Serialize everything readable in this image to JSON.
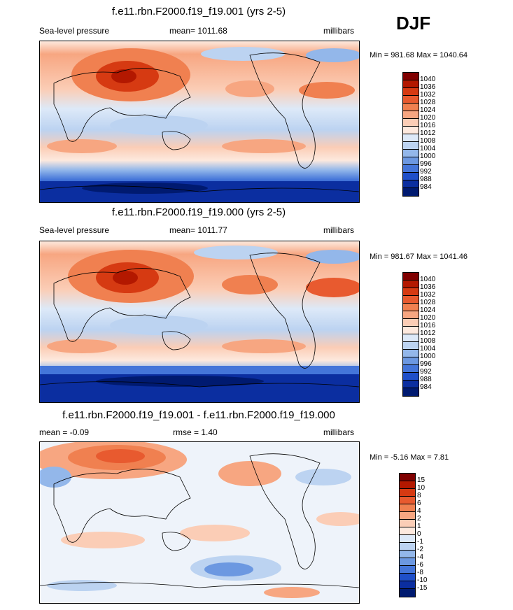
{
  "season": "DJF",
  "panels": [
    {
      "title": "f.e11.rbn.F2000.f19_f19.001 (yrs 2-5)",
      "left_label": "Sea-level pressure",
      "center_label": "mean= 1011.68",
      "right_label": "millibars",
      "minmax": "Min = 981.68 Max = 1040.64",
      "colorbar": {
        "labels": [
          "1040",
          "1036",
          "1032",
          "1028",
          "1024",
          "1020",
          "1016",
          "1012",
          "1008",
          "1004",
          "1000",
          "996",
          "992",
          "988",
          "984"
        ],
        "colors": [
          "#800000",
          "#b31800",
          "#d63a12",
          "#e85a2f",
          "#f08050",
          "#f7a681",
          "#fbcdb6",
          "#fde9de",
          "#dde9f8",
          "#bcd3f1",
          "#93b7ea",
          "#6c98e1",
          "#4475d9",
          "#1f4fc9",
          "#0b2ea0",
          "#001a70"
        ]
      }
    },
    {
      "title": "f.e11.rbn.F2000.f19_f19.000 (yrs 2-5)",
      "left_label": "Sea-level pressure",
      "center_label": "mean= 1011.77",
      "right_label": "millibars",
      "minmax": "Min = 981.67 Max = 1041.46",
      "colorbar": {
        "labels": [
          "1040",
          "1036",
          "1032",
          "1028",
          "1024",
          "1020",
          "1016",
          "1012",
          "1008",
          "1004",
          "1000",
          "996",
          "992",
          "988",
          "984"
        ],
        "colors": [
          "#800000",
          "#b31800",
          "#d63a12",
          "#e85a2f",
          "#f08050",
          "#f7a681",
          "#fbcdb6",
          "#fde9de",
          "#dde9f8",
          "#bcd3f1",
          "#93b7ea",
          "#6c98e1",
          "#4475d9",
          "#1f4fc9",
          "#0b2ea0",
          "#001a70"
        ]
      }
    },
    {
      "title": "f.e11.rbn.F2000.f19_f19.001 - f.e11.rbn.F2000.f19_f19.000",
      "left_label": "mean =  -0.09",
      "center_label": "rmse =   1.40",
      "right_label": "millibars",
      "minmax": "Min =  -5.16 Max =   7.81",
      "colorbar": {
        "labels": [
          "15",
          "10",
          "8",
          "6",
          "4",
          "2",
          "1",
          "0",
          "-1",
          "-2",
          "-4",
          "-6",
          "-8",
          "-10",
          "-15"
        ],
        "colors": [
          "#800000",
          "#b31800",
          "#d63a12",
          "#e85a2f",
          "#f08050",
          "#f7a681",
          "#fbcdb6",
          "#fde9de",
          "#dde9f8",
          "#bcd3f1",
          "#93b7ea",
          "#6c98e1",
          "#4475d9",
          "#1f4fc9",
          "#0b2ea0",
          "#001a70"
        ]
      }
    }
  ]
}
